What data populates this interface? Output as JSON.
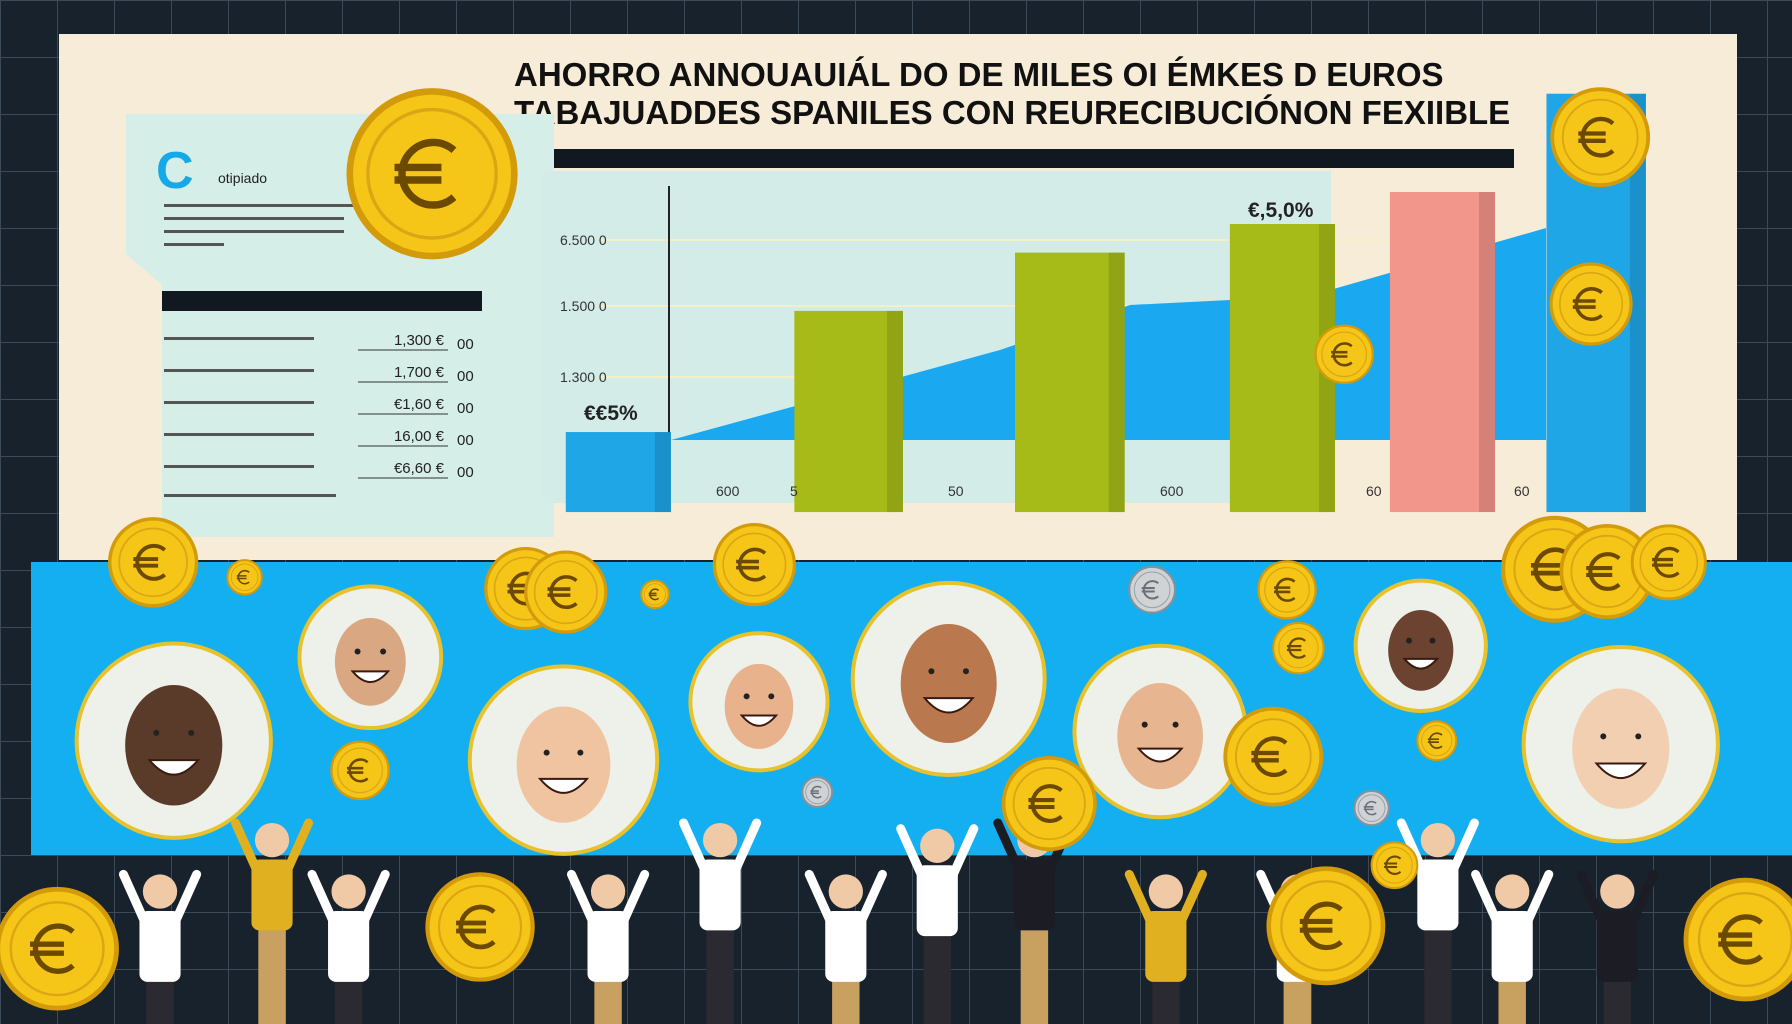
{
  "header": {
    "title_lines": [
      "AHORRO ANNOUAUIÁL DO DE MILES OI ÉMKES D EUROS",
      "TABAJUADDES SPANILES CON REURECIBUCIÓNON FEXIIBLE"
    ]
  },
  "sidebar": {
    "icon_letter": "C",
    "caption": "otipiado",
    "rows": [
      {
        "value": "1,300 €",
        "unit": "00"
      },
      {
        "value": "1,700 €",
        "unit": "00"
      },
      {
        "value": "€1,60 €",
        "unit": "00"
      },
      {
        "value": "16,00 €",
        "unit": "00"
      },
      {
        "value": "€6,60 €",
        "unit": "00"
      }
    ]
  },
  "chart": {
    "axis_labels": [
      "6.500 0",
      "1.500 0",
      "1.300 0"
    ],
    "x_labels": [
      "600",
      "5",
      "50",
      "600",
      "60",
      "60"
    ],
    "annotations": [
      "€€5%",
      "€,5,0%"
    ]
  }
}
